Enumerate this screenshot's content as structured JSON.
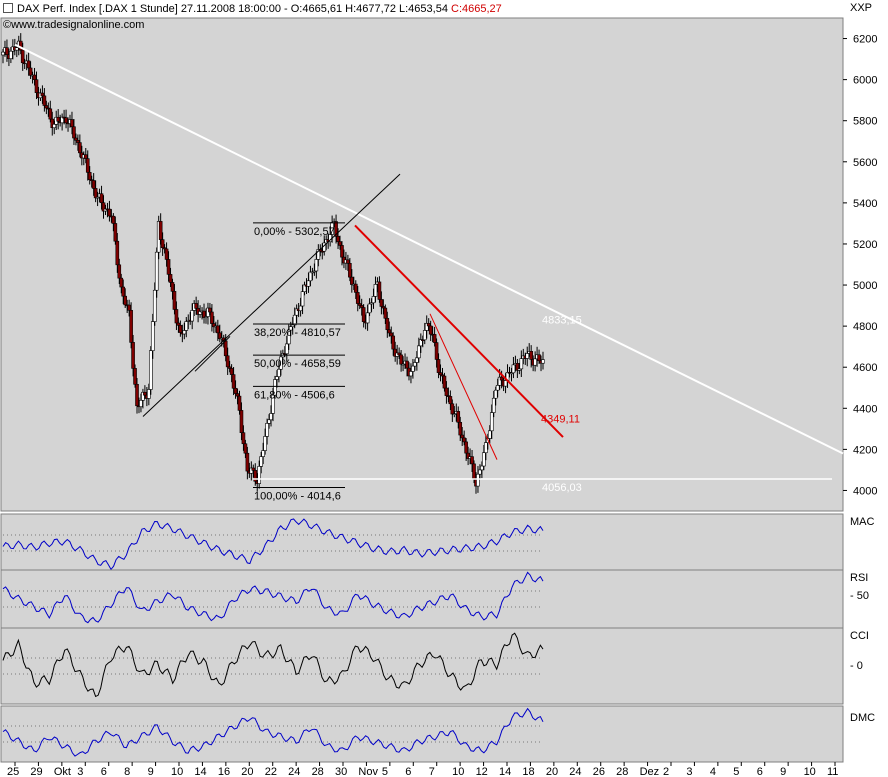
{
  "header": {
    "title": "DAX Perf. Index [.DAX  1 Stunde] 27.11.2008 18:00:00 - O:4665,61 H:4677,72 L:4653,54 ",
    "close": "C:4665,27",
    "source": "www.tradesignalonline.com",
    "symbol": "XXP"
  },
  "colors": {
    "panel_bg": "#d4d4d4",
    "page_bg": "#ffffff",
    "candle_up": "#ffffff",
    "candle_down": "#800000",
    "trend_red": "#e00000",
    "resistance_white": "#ffffff",
    "indicator_blue": "#0000c8",
    "indicator_black": "#000000",
    "signal_red": "#c00000"
  },
  "chart_data": [
    {
      "type": "candlestick",
      "panel": "price",
      "ylim": [
        3900,
        6300
      ],
      "y_ticks": [
        6200,
        6000,
        5800,
        5600,
        5400,
        5200,
        5000,
        4800,
        4600,
        4400,
        4200,
        4000
      ],
      "x_ticks": [
        "25",
        "29",
        "Okt",
        "3",
        "6",
        "8",
        "9",
        "10",
        "14",
        "16",
        "20",
        "22",
        "24",
        "28",
        "30",
        "Nov",
        "5",
        "6",
        "7",
        "10",
        "12",
        "14",
        "18",
        "20",
        "24",
        "26",
        "28",
        "Dez",
        "2",
        "3",
        "4",
        "5",
        "6",
        "9",
        "10",
        "11"
      ],
      "path": [
        [
          0,
          6120
        ],
        [
          8,
          6160
        ],
        [
          18,
          5940
        ],
        [
          26,
          5780
        ],
        [
          32,
          5820
        ],
        [
          40,
          5640
        ],
        [
          48,
          5420
        ],
        [
          55,
          5340
        ],
        [
          60,
          4980
        ],
        [
          64,
          4850
        ],
        [
          68,
          4400
        ],
        [
          74,
          4500
        ],
        [
          79,
          5300
        ],
        [
          84,
          5060
        ],
        [
          90,
          4740
        ],
        [
          96,
          4880
        ],
        [
          104,
          4860
        ],
        [
          110,
          4760
        ],
        [
          116,
          4560
        ],
        [
          120,
          4380
        ],
        [
          124,
          4100
        ],
        [
          129,
          4060
        ],
        [
          134,
          4300
        ],
        [
          138,
          4520
        ],
        [
          143,
          4700
        ],
        [
          150,
          4900
        ],
        [
          158,
          5100
        ],
        [
          164,
          5220
        ],
        [
          168,
          5290
        ],
        [
          172,
          5150
        ],
        [
          178,
          5000
        ],
        [
          183,
          4820
        ],
        [
          190,
          5000
        ],
        [
          196,
          4750
        ],
        [
          202,
          4620
        ],
        [
          208,
          4580
        ],
        [
          214,
          4800
        ],
        [
          218,
          4760
        ],
        [
          222,
          4550
        ],
        [
          226,
          4450
        ],
        [
          230,
          4350
        ],
        [
          235,
          4200
        ],
        [
          240,
          4040
        ],
        [
          245,
          4200
        ],
        [
          250,
          4500
        ],
        [
          256,
          4560
        ],
        [
          262,
          4620
        ],
        [
          266,
          4660
        ],
        [
          270,
          4640
        ],
        [
          274,
          4620
        ]
      ],
      "annotations": {
        "fibonacci": [
          {
            "label": "0,00% - 5302,57",
            "value": 5302.57
          },
          {
            "label": "38,20% - 4810,57",
            "value": 4810.57
          },
          {
            "label": "50,00% - 4658,59",
            "value": 4658.59
          },
          {
            "label": "61,80% - 4506,6",
            "value": 4506.6
          },
          {
            "label": "100,00% - 4014,6",
            "value": 4014.6
          }
        ],
        "resistance_label": "4833,15",
        "resistance_value": 4833.15,
        "trend_label": "4349,11",
        "trend_value": 4349.11,
        "support_label": "4056,03",
        "support_value": 4056.03
      }
    },
    {
      "type": "line",
      "panel": "MAC",
      "series": [
        {
          "name": "MAC",
          "values": [
            -40,
            -30,
            -45,
            -20,
            -10,
            -60,
            -120,
            -150,
            -80,
            40,
            90,
            60,
            20,
            -20,
            -60,
            -90,
            -120,
            -40,
            60,
            110,
            80,
            40,
            10,
            -20,
            -50,
            -70,
            -60,
            -80,
            -70,
            -60,
            -50,
            -40,
            -10,
            40,
            60,
            50
          ]
        }
      ]
    },
    {
      "type": "line",
      "panel": "RSI",
      "y_ticks": [
        50
      ],
      "series": [
        {
          "name": "RSI",
          "values": [
            60,
            52,
            46,
            40,
            55,
            38,
            34,
            48,
            62,
            42,
            50,
            56,
            45,
            40,
            36,
            52,
            60,
            58,
            54,
            50,
            62,
            44,
            40,
            56,
            48,
            42,
            38,
            45,
            50,
            55,
            44,
            38,
            40,
            62,
            70,
            66
          ]
        }
      ]
    },
    {
      "type": "line",
      "panel": "CCI",
      "y_ticks": [
        0
      ],
      "series": [
        {
          "name": "CCI",
          "values": [
            40,
            120,
            -80,
            -60,
            100,
            -40,
            -160,
            60,
            120,
            -40,
            20,
            -60,
            80,
            30,
            -100,
            40,
            140,
            60,
            100,
            -20,
            80,
            -80,
            -40,
            120,
            60,
            -60,
            -100,
            20,
            80,
            -40,
            -120,
            40,
            20,
            180,
            60,
            100
          ]
        }
      ]
    },
    {
      "type": "line",
      "panel": "DMC",
      "series": [
        {
          "name": "DMC",
          "values": [
            10,
            6,
            2,
            8,
            4,
            0,
            6,
            10,
            4,
            8,
            12,
            6,
            2,
            4,
            8,
            12,
            16,
            10,
            8,
            6,
            12,
            4,
            2,
            8,
            6,
            4,
            2,
            6,
            8,
            10,
            4,
            2,
            6,
            16,
            18,
            14
          ]
        }
      ]
    }
  ],
  "panel_labels": {
    "mac": "MAC",
    "rsi": "RSI",
    "cci": "CCI",
    "dmc": "DMC"
  }
}
